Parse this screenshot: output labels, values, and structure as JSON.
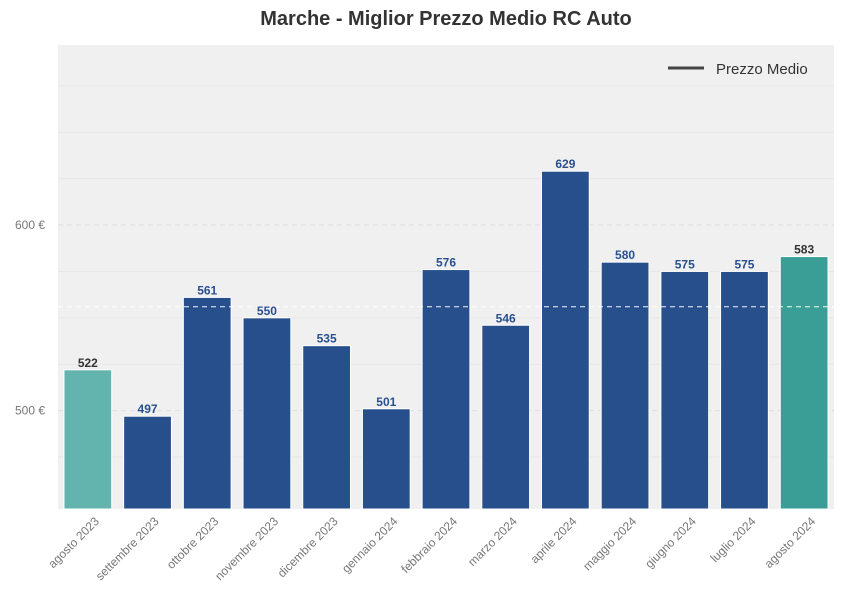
{
  "chart_data": {
    "type": "bar",
    "title": "Marche - Miglior Prezzo Medio RC Auto",
    "categories": [
      "agosto 2023",
      "settembre 2023",
      "ottobre 2023",
      "novembre 2023",
      "dicembre 2023",
      "gennaio 2024",
      "febbraio 2024",
      "marzo 2024",
      "aprile 2024",
      "maggio 2024",
      "giugno 2024",
      "luglio 2024",
      "agosto 2024"
    ],
    "values": [
      522,
      497,
      561,
      550,
      535,
      501,
      576,
      546,
      629,
      580,
      575,
      575,
      583
    ],
    "value_labels": [
      "522",
      "497",
      "561",
      "550",
      "535",
      "501",
      "576",
      "546",
      "629",
      "580",
      "575",
      "575",
      "583"
    ],
    "ylim": [
      447,
      697
    ],
    "yticks": [
      500,
      600
    ],
    "ytick_labels": [
      "500 €",
      "600 €"
    ],
    "mean_line": {
      "name": "Prezzo Medio",
      "value": 556
    },
    "legend": {
      "position": "top-right",
      "label": "Prezzo Medio"
    },
    "grid": true,
    "colors": {
      "bar_default": "#264f8c",
      "bar_first": "#63b3ae",
      "bar_last": "#3a9e96",
      "label_default": "#2a4f8f",
      "label_highlight": "#333333",
      "mean_line": "#ffffff",
      "legend_line": "#444444",
      "plot_bg": "#f0f0f0"
    }
  }
}
